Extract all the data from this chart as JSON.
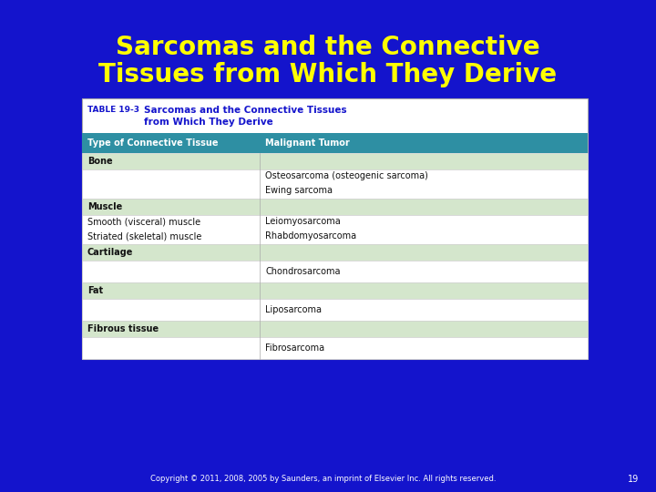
{
  "title_line1": "Sarcomas and the Connective",
  "title_line2": "Tissues from Which They Derive",
  "title_color": "#FFFF00",
  "bg_color": "#1414CC",
  "table_title_label": "TABLE 19-3",
  "table_title_text1": "Sarcomas and the Connective Tissues",
  "table_title_text2": "from Which They Derive",
  "col_header_bg": "#2E8FA3",
  "col_header_color": "#FFFFFF",
  "col1_header": "Type of Connective Tissue",
  "col2_header": "Malignant Tumor",
  "row_bg_category": "#D4E6CC",
  "row_bg_data": "#FFFFFF",
  "table_bg": "#FFFFFF",
  "rows": [
    {
      "col1": "Bone",
      "col2": "",
      "style": "category"
    },
    {
      "col1": "",
      "col2": "Osteosarcoma (osteogenic sarcoma)\nEwing sarcoma",
      "style": "data"
    },
    {
      "col1": "Muscle",
      "col2": "",
      "style": "category"
    },
    {
      "col1": "Smooth (visceral) muscle\nStriated (skeletal) muscle",
      "col2": "Leiomyosarcoma\nRhabdomyosarcoma",
      "style": "data"
    },
    {
      "col1": "Cartilage",
      "col2": "",
      "style": "category"
    },
    {
      "col1": "",
      "col2": "Chondrosarcoma",
      "style": "data"
    },
    {
      "col1": "Fat",
      "col2": "",
      "style": "category"
    },
    {
      "col1": "",
      "col2": "Liposarcoma",
      "style": "data"
    },
    {
      "col1": "Fibrous tissue",
      "col2": "",
      "style": "category"
    },
    {
      "col1": "",
      "col2": "Fibrosarcoma",
      "style": "data"
    }
  ],
  "footer_text": "Copyright © 2011, 2008, 2005 by Saunders, an imprint of Elsevier Inc. All rights reserved.",
  "footer_page": "19",
  "footer_color": "#FFFFFF",
  "title_fontsize": 20,
  "table_label_color": "#1414CC",
  "table_title_color": "#1414CC"
}
